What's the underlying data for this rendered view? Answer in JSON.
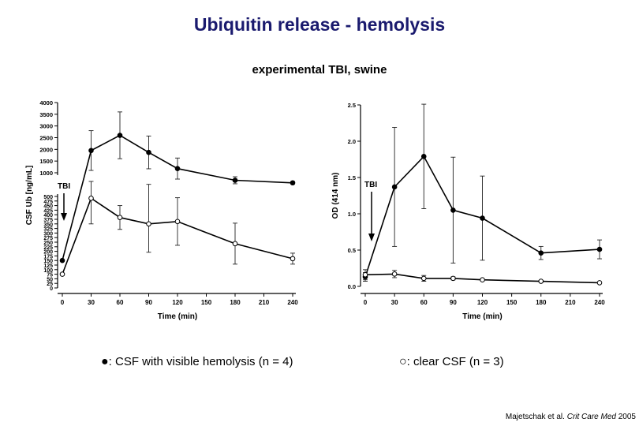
{
  "title": "Ubiquitin release - hemolysis",
  "subtitle": "experimental TBI, swine",
  "legend": {
    "filled": {
      "symbol": "●",
      "text": ": CSF with visible hemolysis (n = 4)"
    },
    "open": {
      "symbol": "○",
      "text": ": clear CSF (n = 3)"
    }
  },
  "citation": {
    "authors": "Majetschak et al.",
    "journal": "Crit Care Med",
    "year": "2005"
  },
  "chart_data": [
    {
      "type": "line",
      "xlabel": "Time (min)",
      "ylabel": "CSF Ub [ng/mL]",
      "xticks": [
        0,
        30,
        60,
        90,
        120,
        150,
        180,
        210,
        240
      ],
      "yticks_upper": [
        1000,
        1500,
        2000,
        2500,
        3000,
        3500,
        4000
      ],
      "yticks_lower": [
        0,
        25,
        50,
        75,
        100,
        125,
        150,
        175,
        200,
        225,
        250,
        275,
        300,
        325,
        350,
        375,
        400,
        425,
        450,
        475,
        500
      ],
      "ytick_labels_upper": [
        "1000",
        "1500",
        "2000",
        "2500",
        "3000",
        "3500",
        "4000"
      ],
      "ytick_labels_lower": [
        "0",
        "25",
        "50",
        "75",
        "100",
        "125",
        "150",
        "175",
        "200",
        "225",
        "250",
        "275",
        "300",
        "325",
        "350",
        "375",
        "400",
        "425",
        "450",
        "475",
        "500"
      ],
      "axis_break": true,
      "ylim": [
        0,
        4000
      ],
      "annotation": "TBI",
      "series": [
        {
          "marker": "filled",
          "x": [
            0,
            30,
            60,
            90,
            120,
            180,
            240
          ],
          "y": [
            150,
            1950,
            2600,
            1870,
            1180,
            680,
            570
          ],
          "err": [
            0,
            850,
            1000,
            700,
            450,
            150,
            50
          ]
        },
        {
          "marker": "open",
          "x": [
            0,
            30,
            60,
            90,
            120,
            180,
            240
          ],
          "y": [
            75,
            490,
            385,
            350,
            363,
            242,
            160
          ],
          "err": [
            0,
            140,
            65,
            155,
            130,
            112,
            30
          ]
        }
      ]
    },
    {
      "type": "line",
      "xlabel": "Time (min)",
      "ylabel": "OD (414 nm)",
      "xticks": [
        0,
        30,
        60,
        90,
        120,
        150,
        180,
        210,
        240
      ],
      "yticks": [
        0.0,
        0.5,
        1.0,
        1.5,
        2.0,
        2.5
      ],
      "ytick_labels": [
        "0.0",
        "0.5",
        "1.0",
        "1.5",
        "2.0",
        "2.5"
      ],
      "ylim": [
        0,
        2.5
      ],
      "annotation": "TBI",
      "series": [
        {
          "marker": "filled",
          "x": [
            0,
            30,
            60,
            90,
            120,
            180,
            240
          ],
          "y": [
            0.13,
            1.37,
            1.79,
            1.05,
            0.94,
            0.46,
            0.51
          ],
          "err": [
            0.06,
            0.82,
            0.72,
            0.73,
            0.58,
            0.09,
            0.13
          ]
        },
        {
          "marker": "open",
          "x": [
            0,
            30,
            60,
            90,
            120,
            180,
            240
          ],
          "y": [
            0.16,
            0.17,
            0.11,
            0.11,
            0.09,
            0.07,
            0.05
          ],
          "err": [
            0.07,
            0.05,
            0.04,
            0.02,
            0.01,
            0.01,
            0.01
          ]
        }
      ]
    }
  ]
}
